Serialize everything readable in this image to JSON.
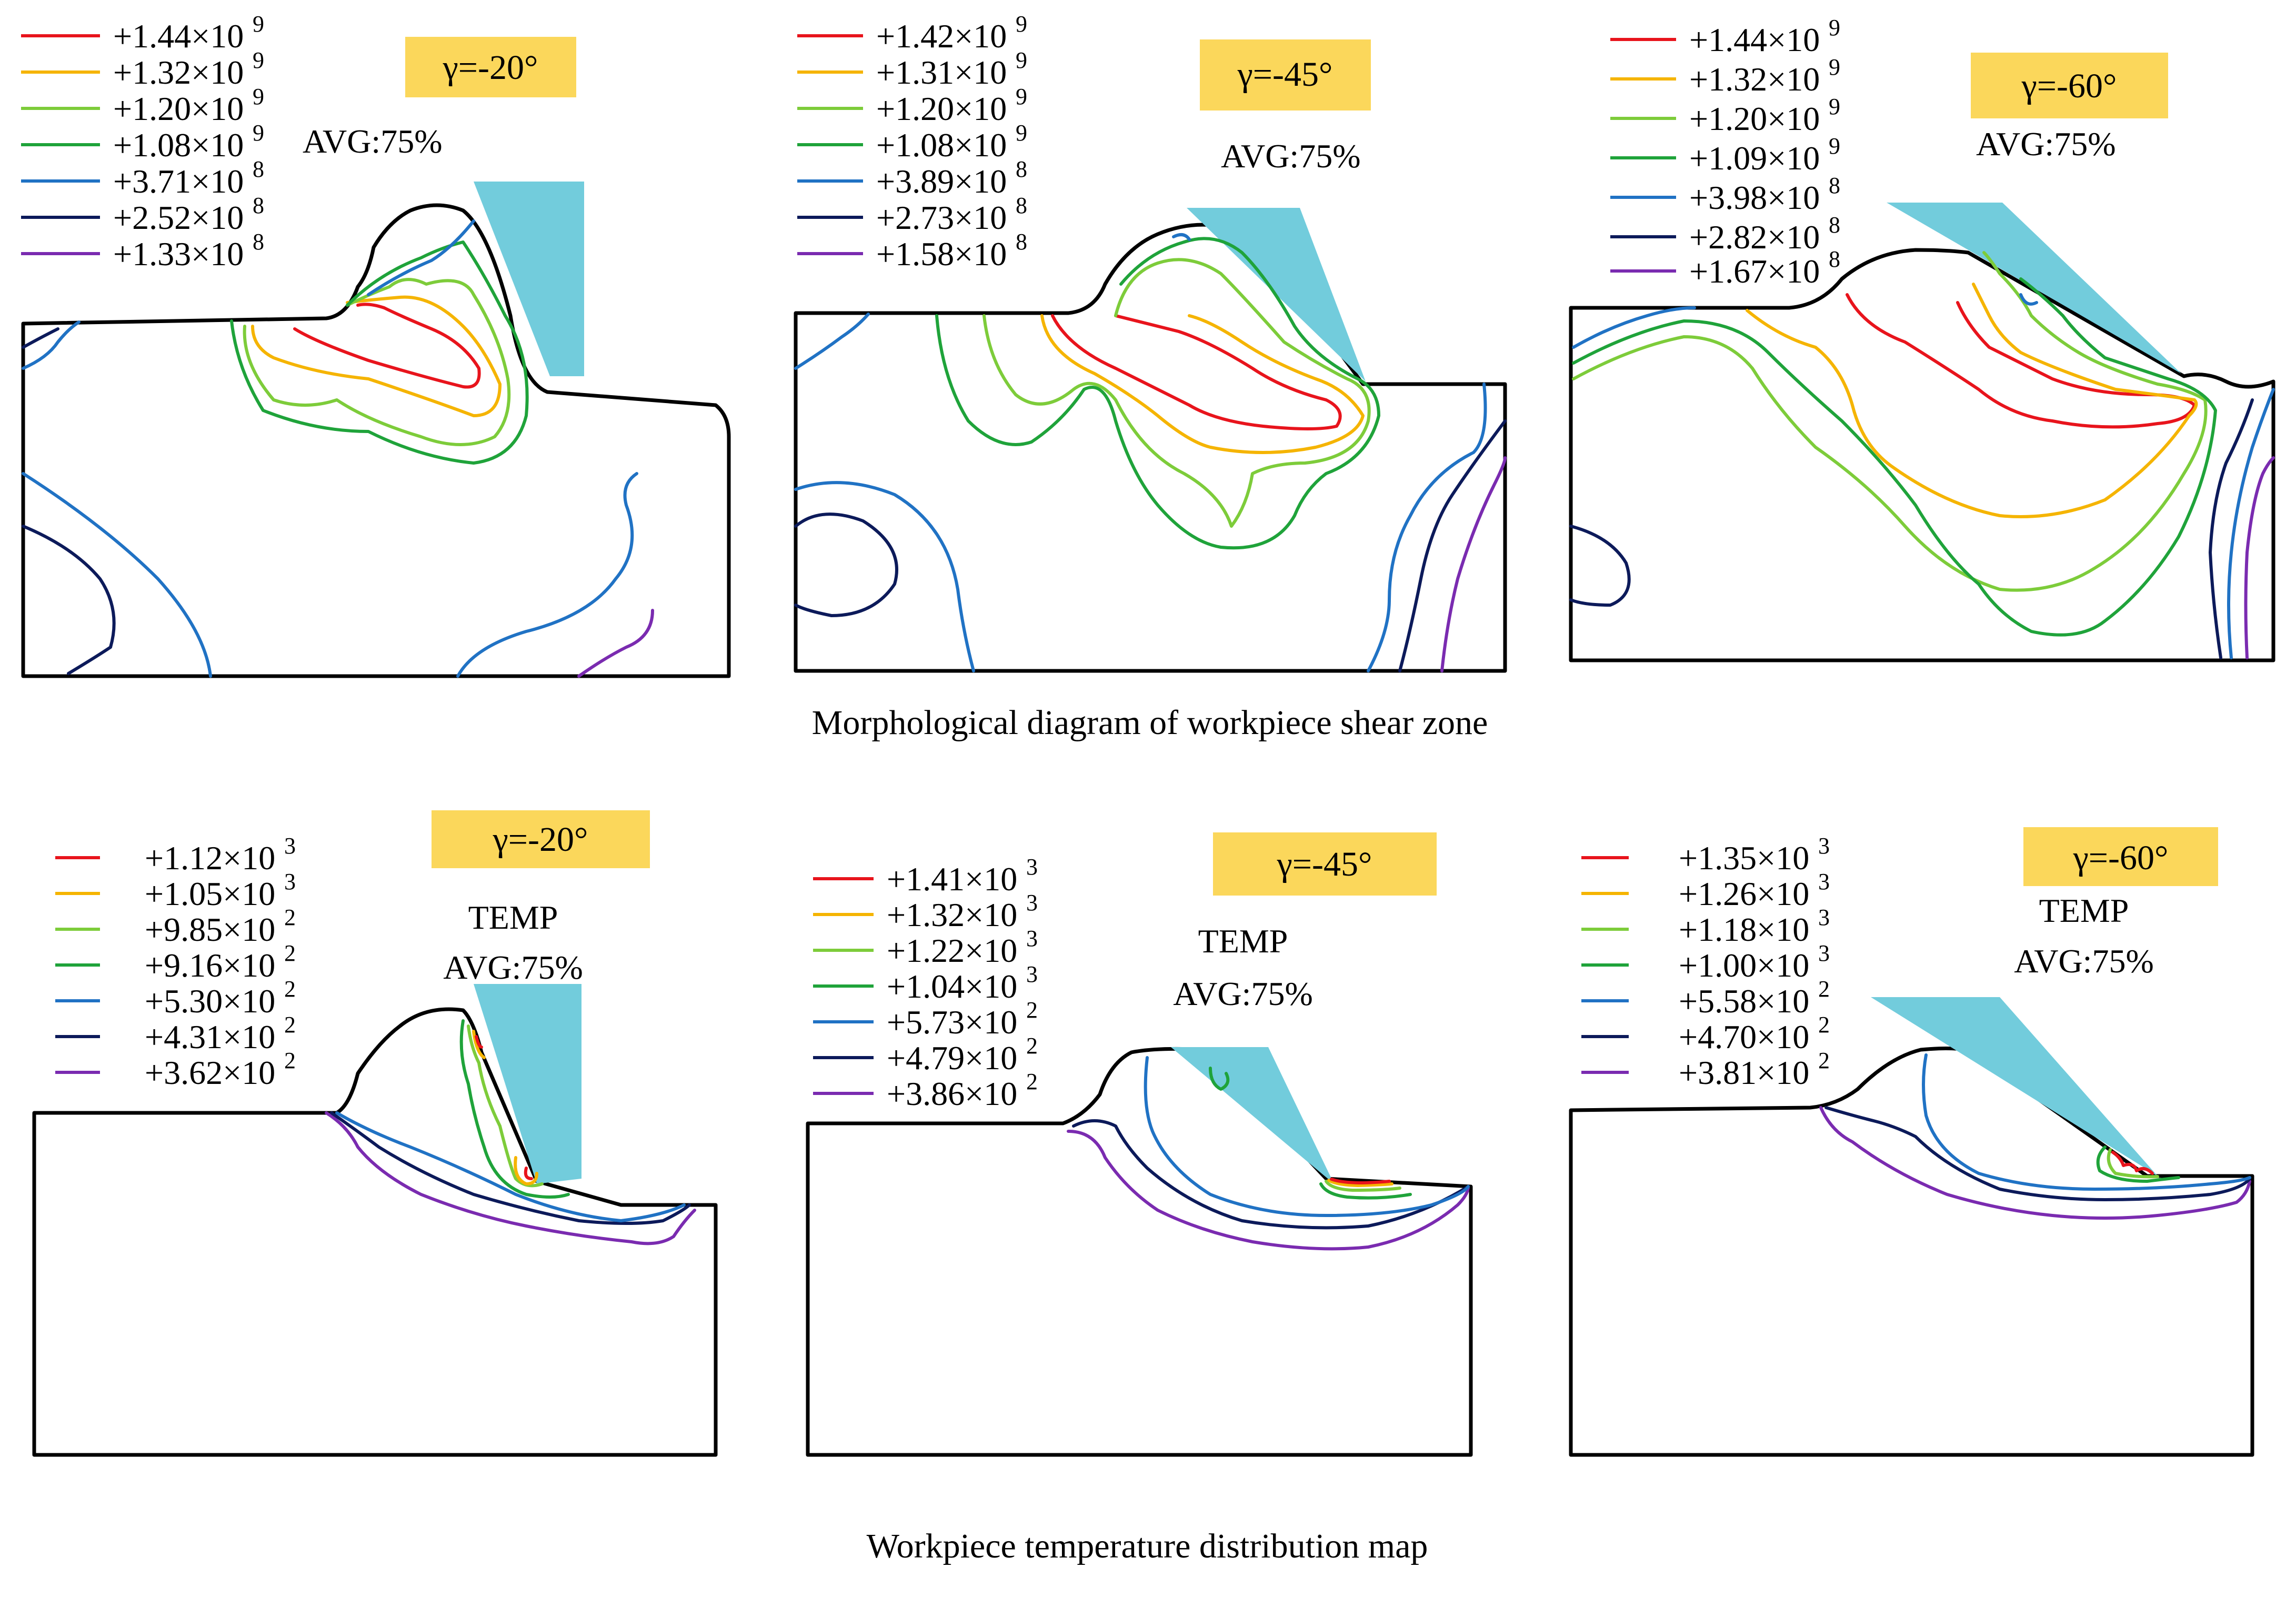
{
  "colors": {
    "c1": "#e8141c",
    "c2": "#f5b400",
    "c3": "#7dcc3a",
    "c4": "#1fa33a",
    "c5": "#2072c4",
    "c6": "#0c1a5a",
    "c7": "#7a2bb0",
    "tool": "#72ccdc",
    "badge": "#fbd75b"
  },
  "captions": {
    "top": "Morphological diagram of workpiece shear zone",
    "bottom": "Workpiece temperature distribution map"
  },
  "panels": [
    {
      "id": "stress-20",
      "badge": "γ=-20°",
      "notes": [
        "AVG:75%"
      ],
      "legend": [
        {
          "mant": "+1.44×10",
          "exp": "9",
          "color": "#e8141c"
        },
        {
          "mant": "+1.32×10",
          "exp": "9",
          "color": "#f5b400"
        },
        {
          "mant": "+1.20×10",
          "exp": "9",
          "color": "#7dcc3a"
        },
        {
          "mant": "+1.08×10",
          "exp": "9",
          "color": "#1fa33a"
        },
        {
          "mant": "+3.71×10",
          "exp": "8",
          "color": "#2072c4"
        },
        {
          "mant": "+2.52×10",
          "exp": "8",
          "color": "#0c1a5a"
        },
        {
          "mant": "+1.33×10",
          "exp": "8",
          "color": "#7a2bb0"
        }
      ]
    },
    {
      "id": "stress-45",
      "badge": "γ=-45°",
      "notes": [
        "AVG:75%"
      ],
      "legend": [
        {
          "mant": "+1.42×10",
          "exp": "9",
          "color": "#e8141c"
        },
        {
          "mant": "+1.31×10",
          "exp": "9",
          "color": "#f5b400"
        },
        {
          "mant": "+1.20×10",
          "exp": "9",
          "color": "#7dcc3a"
        },
        {
          "mant": "+1.08×10",
          "exp": "9",
          "color": "#1fa33a"
        },
        {
          "mant": "+3.89×10",
          "exp": "8",
          "color": "#2072c4"
        },
        {
          "mant": "+2.73×10",
          "exp": "8",
          "color": "#0c1a5a"
        },
        {
          "mant": "+1.58×10",
          "exp": "8",
          "color": "#7a2bb0"
        }
      ]
    },
    {
      "id": "stress-60",
      "badge": "γ=-60°",
      "notes": [
        "AVG:75%"
      ],
      "legend": [
        {
          "mant": "+1.44×10",
          "exp": "9",
          "color": "#e8141c"
        },
        {
          "mant": "+1.32×10",
          "exp": "9",
          "color": "#f5b400"
        },
        {
          "mant": "+1.20×10",
          "exp": "9",
          "color": "#7dcc3a"
        },
        {
          "mant": "+1.09×10",
          "exp": "9",
          "color": "#1fa33a"
        },
        {
          "mant": "+3.98×10",
          "exp": "8",
          "color": "#2072c4"
        },
        {
          "mant": "+2.82×10",
          "exp": "8",
          "color": "#0c1a5a"
        },
        {
          "mant": "+1.67×10",
          "exp": "8",
          "color": "#7a2bb0"
        }
      ]
    },
    {
      "id": "temp-20",
      "badge": "γ=-20°",
      "notes": [
        "TEMP",
        "AVG:75%"
      ],
      "legend": [
        {
          "mant": "+1.12×10",
          "exp": "3",
          "color": "#e8141c"
        },
        {
          "mant": "+1.05×10",
          "exp": "3",
          "color": "#f5b400"
        },
        {
          "mant": "+9.85×10",
          "exp": "2",
          "color": "#7dcc3a"
        },
        {
          "mant": "+9.16×10",
          "exp": "2",
          "color": "#1fa33a"
        },
        {
          "mant": "+5.30×10",
          "exp": "2",
          "color": "#2072c4"
        },
        {
          "mant": "+4.31×10",
          "exp": "2",
          "color": "#0c1a5a"
        },
        {
          "mant": "+3.62×10",
          "exp": "2",
          "color": "#7a2bb0"
        }
      ]
    },
    {
      "id": "temp-45",
      "badge": "γ=-45°",
      "notes": [
        "TEMP",
        "AVG:75%"
      ],
      "legend": [
        {
          "mant": "+1.41×10",
          "exp": "3",
          "color": "#e8141c"
        },
        {
          "mant": "+1.32×10",
          "exp": "3",
          "color": "#f5b400"
        },
        {
          "mant": "+1.22×10",
          "exp": "3",
          "color": "#7dcc3a"
        },
        {
          "mant": "+1.04×10",
          "exp": "3",
          "color": "#1fa33a"
        },
        {
          "mant": "+5.73×10",
          "exp": "2",
          "color": "#2072c4"
        },
        {
          "mant": "+4.79×10",
          "exp": "2",
          "color": "#0c1a5a"
        },
        {
          "mant": "+3.86×10",
          "exp": "2",
          "color": "#7a2bb0"
        }
      ]
    },
    {
      "id": "temp-60",
      "badge": "γ=-60°",
      "notes": [
        "TEMP",
        "AVG:75%"
      ],
      "legend": [
        {
          "mant": "+1.35×10",
          "exp": "3",
          "color": "#e8141c"
        },
        {
          "mant": "+1.26×10",
          "exp": "3",
          "color": "#f5b400"
        },
        {
          "mant": "+1.18×10",
          "exp": "3",
          "color": "#7dcc3a"
        },
        {
          "mant": "+1.00×10",
          "exp": "3",
          "color": "#1fa33a"
        },
        {
          "mant": "+5.58×10",
          "exp": "2",
          "color": "#2072c4"
        },
        {
          "mant": "+4.70×10",
          "exp": "2",
          "color": "#0c1a5a"
        },
        {
          "mant": "+3.81×10",
          "exp": "2",
          "color": "#7a2bb0"
        }
      ]
    }
  ]
}
